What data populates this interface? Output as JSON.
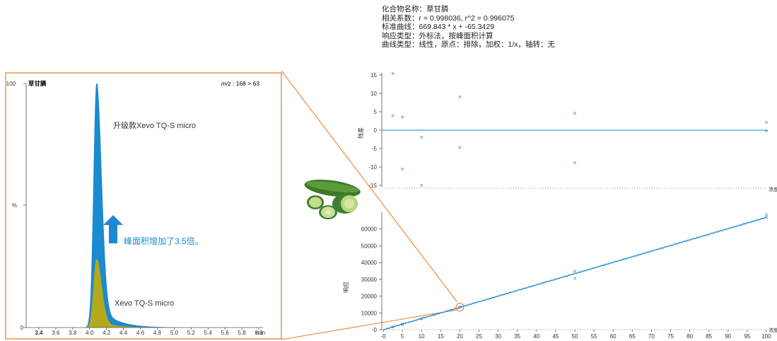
{
  "info": {
    "compound": "化合物名称：草甘膦",
    "correlation": "相关系数：r = 0.998036, r^2 = 0.996075",
    "curve": "标准曲线：669.843 * x + -65.3429",
    "response_type": "响应类型：外标法，按峰面积计算",
    "curve_type": "曲线类型：线性，原点：排除，加权：1/x，轴转：无"
  },
  "colors": {
    "upgrade_peak": "#1a8ad1",
    "base_peak": "#b4a91a",
    "connector": "#e8852f",
    "arrow": "#1a8ad1",
    "fit_line": "#1a8ad1",
    "frame": "#e8852f"
  },
  "icons": {
    "cucumber": "cucumber-illustration",
    "arrow": "up-arrow-icon"
  },
  "chart_data": [
    {
      "type": "area",
      "title": "草甘膦",
      "transition_prefix": "m/z",
      "transition_value": ": 168 > 63",
      "xlabel": "min",
      "ylabel": "%",
      "xlim": [
        3.25,
        6.05
      ],
      "ylim": [
        0,
        100
      ],
      "x_ticks": [
        "3.4",
        "3.6",
        "3.8",
        "4.0",
        "4.2",
        "4.4",
        "4.6",
        "4.8",
        "5.0",
        "5.2",
        "5.4",
        "5.6",
        "5.8",
        "6.0"
      ],
      "y_ticks": [
        "0",
        "100"
      ],
      "series": [
        {
          "name": "升级款Xevo TQ-S micro",
          "peak_x": 4.08,
          "peak_y": 100
        },
        {
          "name": "Xevo TQ-S micro",
          "peak_x": 4.08,
          "peak_y": 28
        }
      ],
      "annotation": "峰面积增加了3.5倍。"
    },
    {
      "type": "scatter",
      "ylabel": "残差",
      "xlabel": "浓度",
      "xlim": [
        0,
        100
      ],
      "ylim": [
        -15,
        15
      ],
      "y_ticks": [
        "15",
        "10",
        "5",
        "0",
        "-5",
        "-10",
        "-15"
      ],
      "points": [
        [
          2.5,
          15.4
        ],
        [
          2.5,
          3.9
        ],
        [
          5,
          3.6
        ],
        [
          5,
          -10.6
        ],
        [
          10,
          -1.9
        ],
        [
          10,
          -15.0
        ],
        [
          20,
          9.0
        ],
        [
          20,
          -4.7
        ],
        [
          50,
          4.6
        ],
        [
          50,
          -8.8
        ],
        [
          100,
          2.1
        ],
        [
          100,
          -0.2
        ]
      ]
    },
    {
      "type": "scatter",
      "ylabel": "响应",
      "xlabel": "浓度",
      "xlim": [
        0,
        100
      ],
      "ylim": [
        0,
        70000
      ],
      "x_ticks": [
        "-0",
        "5",
        "10",
        "15",
        "20",
        "25",
        "30",
        "35",
        "40",
        "45",
        "50",
        "55",
        "60",
        "65",
        "70",
        "75",
        "80",
        "85",
        "90",
        "95",
        "100"
      ],
      "y_ticks": [
        "-0",
        "10000",
        "20000",
        "30000",
        "40000",
        "50000",
        "60000"
      ],
      "fit": {
        "slope": 669.843,
        "intercept": -65.3429
      },
      "points": [
        [
          2.5,
          1650
        ],
        [
          2.5,
          1600
        ],
        [
          5,
          3300
        ],
        [
          5,
          3150
        ],
        [
          10,
          6500
        ],
        [
          10,
          6450
        ],
        [
          20,
          13500
        ],
        [
          20,
          13200
        ],
        [
          50,
          34700
        ],
        [
          50,
          30500
        ],
        [
          100,
          68500
        ],
        [
          100,
          67000
        ]
      ]
    }
  ]
}
